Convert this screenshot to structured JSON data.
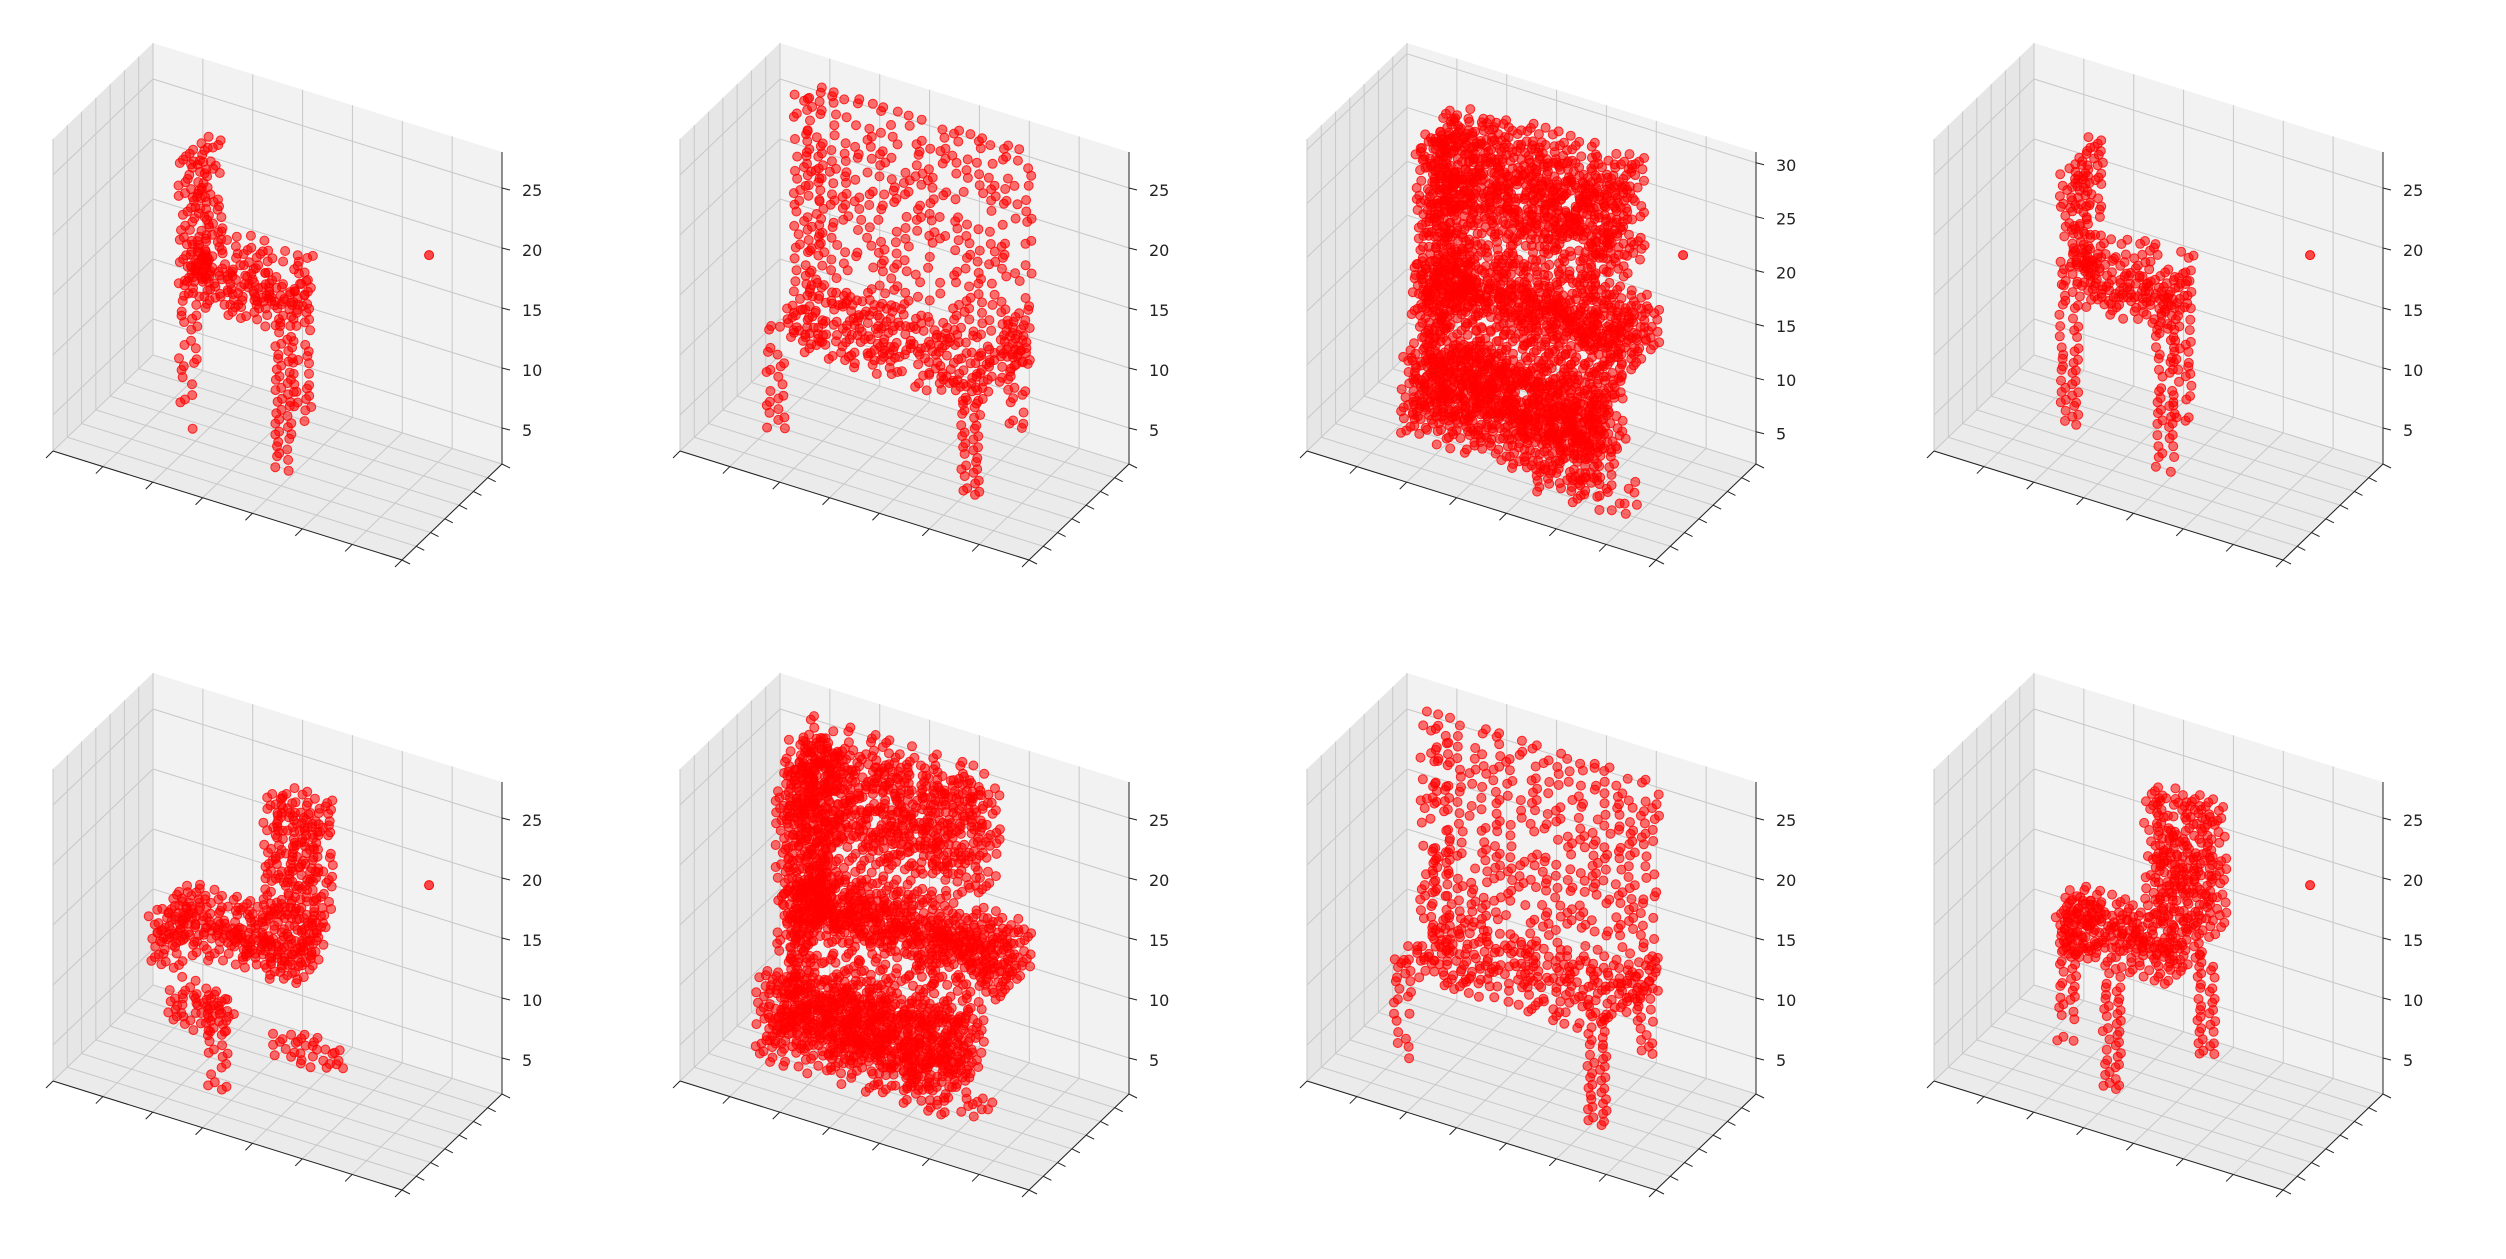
{
  "figure": {
    "rows": 2,
    "cols": 4
  },
  "chart_data": [
    {
      "type": "scatter3d",
      "z_ticks": [
        "5",
        "10",
        "15",
        "20",
        "25"
      ],
      "zlim": [
        2,
        28
      ],
      "point_color": "#ff0000",
      "shape": "chair-a",
      "outlier": true,
      "x_tick_labels_visible": false,
      "y_tick_labels_visible": false,
      "grid": true
    },
    {
      "type": "scatter3d",
      "z_ticks": [
        "5",
        "10",
        "15",
        "20",
        "25"
      ],
      "zlim": [
        2,
        28
      ],
      "point_color": "#ff0000",
      "shape": "chair-b",
      "outlier": false,
      "x_tick_labels_visible": false,
      "y_tick_labels_visible": false,
      "grid": true
    },
    {
      "type": "scatter3d",
      "z_ticks": [
        "5",
        "10",
        "15",
        "20",
        "25",
        "30"
      ],
      "zlim": [
        2,
        31
      ],
      "point_color": "#ff0000",
      "shape": "chair-c",
      "outlier": true,
      "x_tick_labels_visible": false,
      "y_tick_labels_visible": false,
      "grid": true
    },
    {
      "type": "scatter3d",
      "z_ticks": [
        "5",
        "10",
        "15",
        "20",
        "25"
      ],
      "zlim": [
        2,
        28
      ],
      "point_color": "#ff0000",
      "shape": "chair-a",
      "outlier": true,
      "x_tick_labels_visible": false,
      "y_tick_labels_visible": false,
      "grid": true
    },
    {
      "type": "scatter3d",
      "z_ticks": [
        "5",
        "10",
        "15",
        "20",
        "25"
      ],
      "zlim": [
        2,
        28
      ],
      "point_color": "#ff0000",
      "shape": "chair-d",
      "outlier": true,
      "x_tick_labels_visible": false,
      "y_tick_labels_visible": false,
      "grid": true
    },
    {
      "type": "scatter3d",
      "z_ticks": [
        "5",
        "10",
        "15",
        "20",
        "25"
      ],
      "zlim": [
        2,
        28
      ],
      "point_color": "#ff0000",
      "shape": "chair-e",
      "outlier": false,
      "x_tick_labels_visible": false,
      "y_tick_labels_visible": false,
      "grid": true
    },
    {
      "type": "scatter3d",
      "z_ticks": [
        "5",
        "10",
        "15",
        "20",
        "25"
      ],
      "zlim": [
        2,
        28
      ],
      "point_color": "#ff0000",
      "shape": "chair-b",
      "outlier": false,
      "x_tick_labels_visible": false,
      "y_tick_labels_visible": false,
      "grid": true
    },
    {
      "type": "scatter3d",
      "z_ticks": [
        "5",
        "10",
        "15",
        "20",
        "25"
      ],
      "zlim": [
        2,
        28
      ],
      "point_color": "#ff0000",
      "shape": "chair-f",
      "outlier": true,
      "x_tick_labels_visible": false,
      "y_tick_labels_visible": false,
      "grid": true
    }
  ]
}
